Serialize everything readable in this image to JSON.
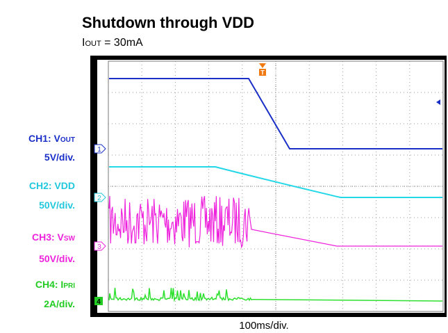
{
  "header": {
    "title": "Shutdown through VDD",
    "subtitle": {
      "prefix": "I",
      "sub": "OUT",
      "suffix": " = 30mA"
    }
  },
  "channels": [
    {
      "name": {
        "prefix": "CH1: V",
        "sub": "OUT"
      },
      "scale": "5V/div.",
      "marker": "1"
    },
    {
      "name": {
        "prefix": "CH2: VDD",
        "sub": ""
      },
      "scale": "50V/div.",
      "marker": "2"
    },
    {
      "name": {
        "prefix": "CH3: V",
        "sub": "SW"
      },
      "scale": "50V/div.",
      "marker": "3"
    },
    {
      "name": {
        "prefix": "CH4: I",
        "sub": "PRI"
      },
      "scale": "2A/div.",
      "marker": "4"
    }
  ],
  "trigger": "T",
  "timebase": "100ms/div."
}
